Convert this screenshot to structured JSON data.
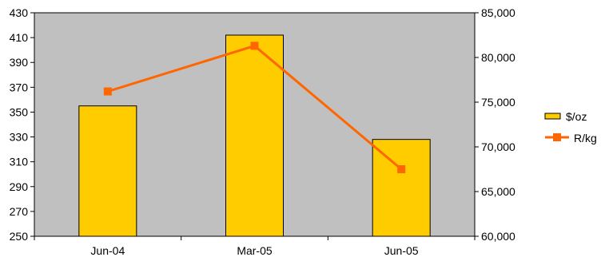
{
  "chart_data": {
    "type": "bar",
    "categories": [
      "Jun-04",
      "Mar-05",
      "Jun-05"
    ],
    "series": [
      {
        "name": "$/oz",
        "type": "bar",
        "axis": "left",
        "values": [
          355,
          412,
          328
        ],
        "color": "#FFCC00"
      },
      {
        "name": "R/kg",
        "type": "line",
        "axis": "right",
        "values": [
          76200,
          81300,
          67500
        ],
        "color": "#FF6600"
      }
    ],
    "y_left": {
      "min": 250,
      "max": 430,
      "ticks": [
        250,
        270,
        290,
        310,
        330,
        350,
        370,
        390,
        410,
        430
      ],
      "tick_labels": [
        "250",
        "270",
        "290",
        "310",
        "330",
        "350",
        "370",
        "390",
        "410",
        "430"
      ]
    },
    "y_right": {
      "min": 60000,
      "max": 85000,
      "ticks": [
        60000,
        65000,
        70000,
        75000,
        80000,
        85000
      ],
      "tick_labels": [
        "60,000",
        "65,000",
        "70,000",
        "75,000",
        "80,000",
        "85,000"
      ]
    },
    "grid": false,
    "legend": "right",
    "plot_background": "#C0C0C0",
    "title": "",
    "xlabel": "",
    "ylabel": ""
  }
}
